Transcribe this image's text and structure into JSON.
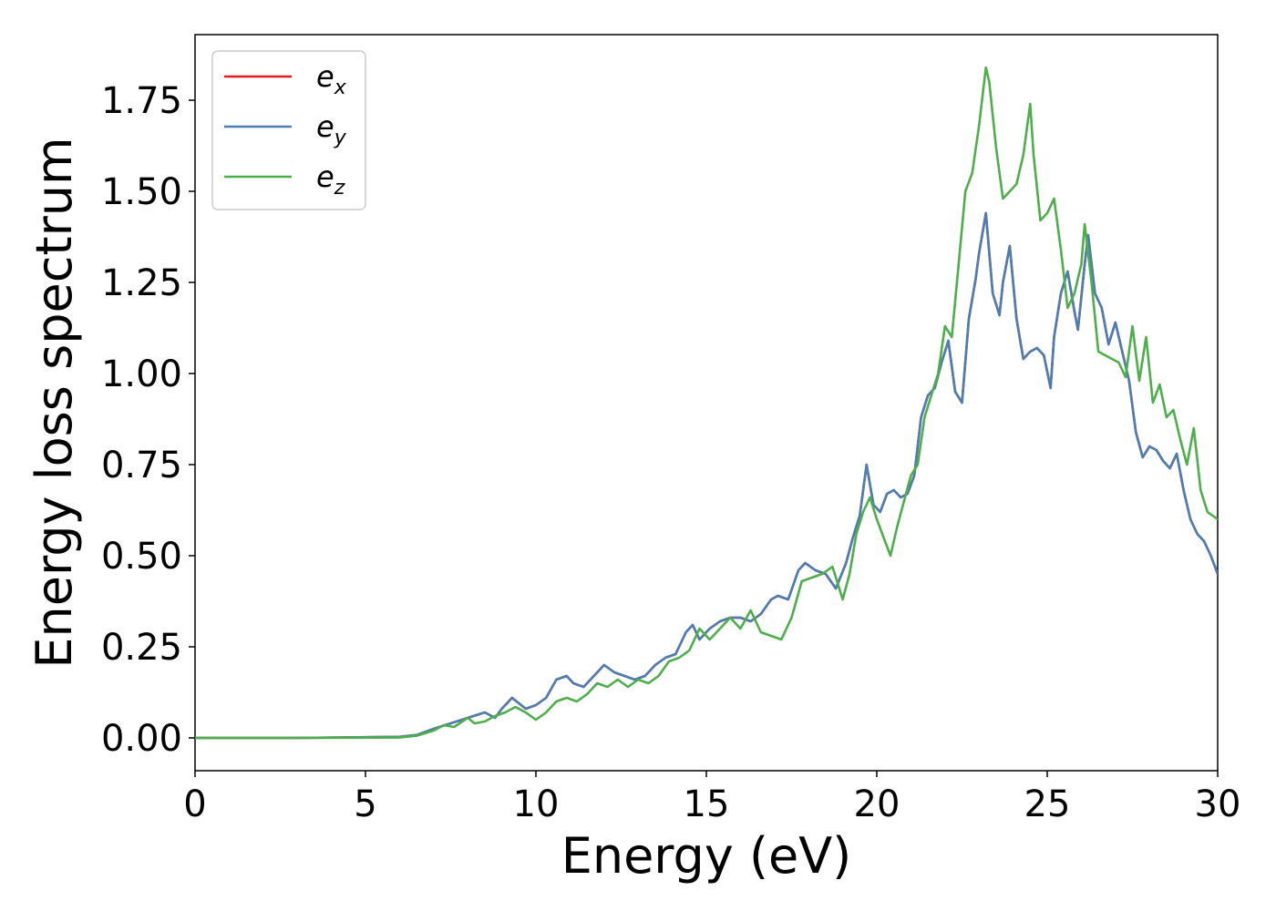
{
  "chart_data": {
    "type": "line",
    "xlabel": "Energy (eV)",
    "ylabel": "Energy loss spectrum",
    "xlim": [
      0,
      30
    ],
    "ylim": [
      -0.09,
      1.93
    ],
    "xticks": [
      0,
      5,
      10,
      15,
      20,
      25,
      30
    ],
    "xtick_labels": [
      "0",
      "5",
      "10",
      "15",
      "20",
      "25",
      "30"
    ],
    "yticks": [
      0.0,
      0.25,
      0.5,
      0.75,
      1.0,
      1.25,
      1.5,
      1.75
    ],
    "ytick_labels": [
      "0.00",
      "0.25",
      "0.50",
      "0.75",
      "1.00",
      "1.25",
      "1.50",
      "1.75"
    ],
    "grid": false,
    "legend_position": "top-left",
    "series": [
      {
        "name": "e",
        "subscript": "x",
        "color": "#e41a1c",
        "x": [
          0,
          3,
          6,
          6.5,
          7,
          7.5,
          8,
          8.5,
          8.8,
          9,
          9.3,
          9.7,
          10,
          10.3,
          10.6,
          10.9,
          11.1,
          11.4,
          11.7,
          12,
          12.3,
          12.6,
          12.9,
          13.2,
          13.5,
          13.8,
          14.1,
          14.4,
          14.6,
          14.8,
          15.1,
          15.4,
          15.7,
          16,
          16.3,
          16.6,
          16.9,
          17.1,
          17.4,
          17.7,
          17.9,
          18.2,
          18.5,
          18.8,
          19.1,
          19.3,
          19.5,
          19.7,
          19.9,
          20.1,
          20.3,
          20.5,
          20.7,
          20.9,
          21.1,
          21.3,
          21.5,
          21.7,
          21.9,
          22.1,
          22.3,
          22.5,
          22.7,
          22.9,
          23.0,
          23.2,
          23.4,
          23.6,
          23.7,
          23.9,
          24.1,
          24.3,
          24.5,
          24.7,
          24.9,
          25.1,
          25.2,
          25.4,
          25.6,
          25.8,
          25.9,
          26.1,
          26.2,
          26.4,
          26.6,
          26.8,
          27.0,
          27.2,
          27.4,
          27.6,
          27.8,
          28.0,
          28.2,
          28.4,
          28.6,
          28.8,
          29.0,
          29.2,
          29.4,
          29.6,
          29.8,
          30.0
        ],
        "y": [
          0.0,
          0.0,
          0.003,
          0.008,
          0.025,
          0.04,
          0.055,
          0.07,
          0.055,
          0.08,
          0.11,
          0.08,
          0.09,
          0.11,
          0.16,
          0.17,
          0.15,
          0.14,
          0.17,
          0.2,
          0.18,
          0.17,
          0.16,
          0.17,
          0.2,
          0.22,
          0.23,
          0.29,
          0.31,
          0.27,
          0.3,
          0.32,
          0.33,
          0.33,
          0.32,
          0.34,
          0.38,
          0.39,
          0.38,
          0.46,
          0.48,
          0.46,
          0.45,
          0.41,
          0.48,
          0.55,
          0.61,
          0.75,
          0.64,
          0.62,
          0.67,
          0.68,
          0.66,
          0.67,
          0.72,
          0.88,
          0.94,
          0.96,
          1.03,
          1.09,
          0.95,
          0.92,
          1.15,
          1.26,
          1.33,
          1.44,
          1.22,
          1.16,
          1.25,
          1.35,
          1.15,
          1.04,
          1.06,
          1.07,
          1.05,
          0.96,
          1.1,
          1.22,
          1.28,
          1.17,
          1.12,
          1.3,
          1.38,
          1.22,
          1.18,
          1.08,
          1.14,
          1.06,
          0.98,
          0.84,
          0.77,
          0.8,
          0.79,
          0.76,
          0.74,
          0.78,
          0.68,
          0.6,
          0.56,
          0.54,
          0.5,
          0.45
        ]
      },
      {
        "name": "e",
        "subscript": "y",
        "color": "#4b7fb3",
        "x": [
          0,
          3,
          6,
          6.5,
          7,
          7.5,
          8,
          8.5,
          8.8,
          9,
          9.3,
          9.7,
          10,
          10.3,
          10.6,
          10.9,
          11.1,
          11.4,
          11.7,
          12,
          12.3,
          12.6,
          12.9,
          13.2,
          13.5,
          13.8,
          14.1,
          14.4,
          14.6,
          14.8,
          15.1,
          15.4,
          15.7,
          16,
          16.3,
          16.6,
          16.9,
          17.1,
          17.4,
          17.7,
          17.9,
          18.2,
          18.5,
          18.8,
          19.1,
          19.3,
          19.5,
          19.7,
          19.9,
          20.1,
          20.3,
          20.5,
          20.7,
          20.9,
          21.1,
          21.3,
          21.5,
          21.7,
          21.9,
          22.1,
          22.3,
          22.5,
          22.7,
          22.9,
          23.0,
          23.2,
          23.4,
          23.6,
          23.7,
          23.9,
          24.1,
          24.3,
          24.5,
          24.7,
          24.9,
          25.1,
          25.2,
          25.4,
          25.6,
          25.8,
          25.9,
          26.1,
          26.2,
          26.4,
          26.6,
          26.8,
          27.0,
          27.2,
          27.4,
          27.6,
          27.8,
          28.0,
          28.2,
          28.4,
          28.6,
          28.8,
          29.0,
          29.2,
          29.4,
          29.6,
          29.8,
          30.0
        ],
        "y": [
          0.0,
          0.0,
          0.003,
          0.008,
          0.025,
          0.04,
          0.055,
          0.07,
          0.055,
          0.08,
          0.11,
          0.08,
          0.09,
          0.11,
          0.16,
          0.17,
          0.15,
          0.14,
          0.17,
          0.2,
          0.18,
          0.17,
          0.16,
          0.17,
          0.2,
          0.22,
          0.23,
          0.29,
          0.31,
          0.27,
          0.3,
          0.32,
          0.33,
          0.33,
          0.32,
          0.34,
          0.38,
          0.39,
          0.38,
          0.46,
          0.48,
          0.46,
          0.45,
          0.41,
          0.48,
          0.55,
          0.61,
          0.75,
          0.64,
          0.62,
          0.67,
          0.68,
          0.66,
          0.67,
          0.72,
          0.88,
          0.94,
          0.96,
          1.03,
          1.09,
          0.95,
          0.92,
          1.15,
          1.26,
          1.33,
          1.44,
          1.22,
          1.16,
          1.25,
          1.35,
          1.15,
          1.04,
          1.06,
          1.07,
          1.05,
          0.96,
          1.1,
          1.22,
          1.28,
          1.17,
          1.12,
          1.3,
          1.38,
          1.22,
          1.18,
          1.08,
          1.14,
          1.06,
          0.98,
          0.84,
          0.77,
          0.8,
          0.79,
          0.76,
          0.74,
          0.78,
          0.68,
          0.6,
          0.56,
          0.54,
          0.5,
          0.45
        ]
      },
      {
        "name": "e",
        "subscript": "z",
        "color": "#4daf4a",
        "x": [
          0,
          3,
          6,
          6.5,
          7,
          7.3,
          7.6,
          8,
          8.2,
          8.5,
          8.8,
          9.1,
          9.4,
          9.7,
          10,
          10.3,
          10.6,
          10.9,
          11.2,
          11.5,
          11.8,
          12.1,
          12.4,
          12.7,
          13.0,
          13.3,
          13.6,
          13.9,
          14.2,
          14.5,
          14.8,
          15.1,
          15.4,
          15.7,
          16.0,
          16.3,
          16.6,
          16.9,
          17.2,
          17.5,
          17.8,
          18.1,
          18.4,
          18.7,
          19.0,
          19.2,
          19.4,
          19.6,
          19.8,
          20.0,
          20.2,
          20.4,
          20.6,
          20.8,
          21.0,
          21.2,
          21.4,
          21.6,
          21.8,
          22.0,
          22.2,
          22.4,
          22.6,
          22.8,
          23.0,
          23.2,
          23.3,
          23.5,
          23.7,
          23.9,
          24.1,
          24.3,
          24.5,
          24.6,
          24.8,
          25.0,
          25.2,
          25.4,
          25.6,
          25.8,
          26.0,
          26.1,
          26.3,
          26.5,
          26.7,
          26.9,
          27.1,
          27.3,
          27.5,
          27.7,
          27.9,
          28.1,
          28.3,
          28.5,
          28.7,
          28.9,
          29.1,
          29.3,
          29.5,
          29.7,
          30.0
        ],
        "y": [
          0.0,
          0.0,
          0.001,
          0.006,
          0.02,
          0.035,
          0.03,
          0.055,
          0.04,
          0.045,
          0.06,
          0.07,
          0.085,
          0.07,
          0.05,
          0.07,
          0.1,
          0.11,
          0.1,
          0.12,
          0.15,
          0.14,
          0.16,
          0.14,
          0.16,
          0.15,
          0.17,
          0.21,
          0.22,
          0.24,
          0.3,
          0.27,
          0.3,
          0.33,
          0.3,
          0.35,
          0.29,
          0.28,
          0.27,
          0.33,
          0.43,
          0.44,
          0.45,
          0.47,
          0.38,
          0.45,
          0.56,
          0.62,
          0.66,
          0.6,
          0.55,
          0.5,
          0.58,
          0.65,
          0.72,
          0.75,
          0.88,
          0.94,
          1.0,
          1.13,
          1.1,
          1.3,
          1.5,
          1.55,
          1.68,
          1.84,
          1.8,
          1.62,
          1.48,
          1.5,
          1.52,
          1.6,
          1.74,
          1.6,
          1.42,
          1.44,
          1.48,
          1.34,
          1.18,
          1.22,
          1.3,
          1.41,
          1.25,
          1.06,
          1.05,
          1.04,
          1.03,
          0.99,
          1.13,
          0.98,
          1.1,
          0.92,
          0.97,
          0.88,
          0.9,
          0.82,
          0.75,
          0.85,
          0.68,
          0.62,
          0.6
        ]
      }
    ]
  }
}
